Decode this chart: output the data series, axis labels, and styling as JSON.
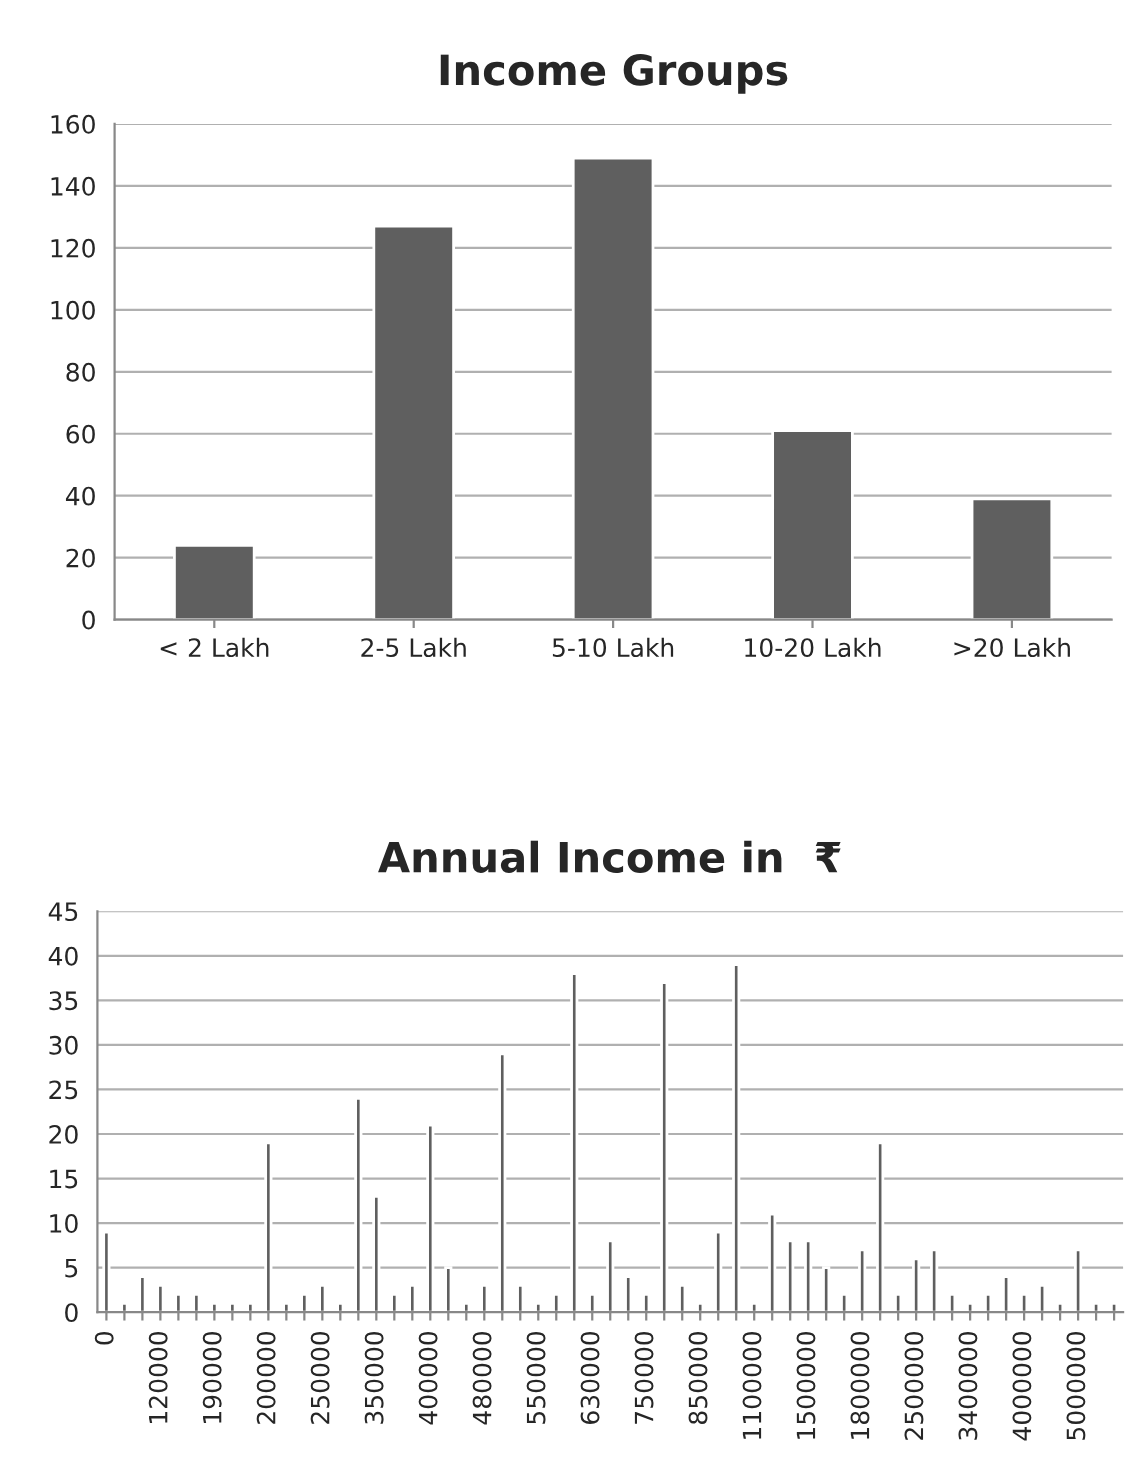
{
  "chart_data": [
    {
      "type": "bar",
      "title": "Income Groups",
      "categories": [
        "< 2 Lakh",
        "2-5 Lakh",
        "5-10 Lakh",
        "10-20 Lakh",
        ">20 Lakh"
      ],
      "values": [
        24,
        127,
        149,
        61,
        39
      ],
      "color": "#5f5f5f",
      "ylim": [
        0,
        160
      ],
      "yticks": [
        0,
        20,
        40,
        60,
        80,
        100,
        120,
        140,
        160
      ],
      "grid": "y",
      "legend": false
    },
    {
      "type": "bar",
      "title": "Annual Income in  ₹",
      "categories": [
        "0",
        null,
        null,
        "120000",
        null,
        null,
        "190000",
        null,
        null,
        "200000",
        null,
        null,
        "250000",
        null,
        null,
        "350000",
        null,
        null,
        "400000",
        null,
        null,
        "480000",
        null,
        null,
        "550000",
        null,
        null,
        "630000",
        null,
        null,
        "750000",
        null,
        null,
        "850000",
        null,
        null,
        "1100000",
        null,
        null,
        "1500000",
        null,
        null,
        "1800000",
        null,
        null,
        "2500000",
        null,
        null,
        "3400000",
        null,
        null,
        "4000000",
        null,
        null,
        "5000000",
        null,
        null
      ],
      "values": [
        9,
        1,
        4,
        3,
        2,
        2,
        1,
        1,
        1,
        19,
        1,
        2,
        3,
        1,
        24,
        13,
        2,
        3,
        21,
        5,
        1,
        3,
        29,
        3,
        1,
        2,
        38,
        2,
        8,
        4,
        2,
        37,
        3,
        1,
        9,
        39,
        1,
        11,
        8,
        8,
        5,
        2,
        7,
        19,
        2,
        6,
        7,
        2,
        1,
        2,
        4,
        2,
        3,
        1,
        7,
        1,
        1
      ],
      "color": "#5f5f5f",
      "ylim": [
        0,
        45
      ],
      "yticks": [
        0,
        5,
        10,
        15,
        20,
        25,
        30,
        35,
        40,
        45
      ],
      "grid": "y",
      "legend": false
    }
  ]
}
